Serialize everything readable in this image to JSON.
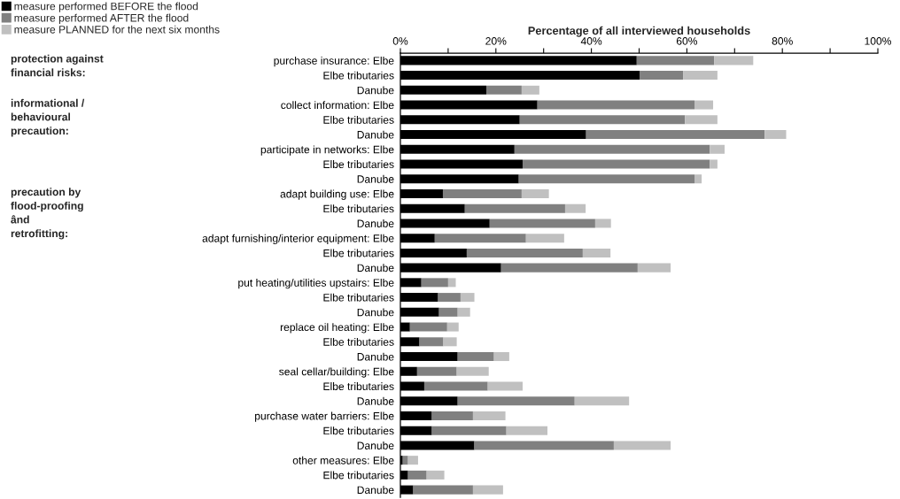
{
  "chart_data": {
    "type": "bar",
    "orientation": "horizontal",
    "stacked": true,
    "xlabel": "Percentage of all interviewed households",
    "categories": [
      "purchase insurance: Elbe",
      "Elbe tributaries",
      "Danube",
      "collect information: Elbe",
      "Elbe tributaries",
      "Danube",
      "participate in networks: Elbe",
      "Elbe tributaries",
      "Danube",
      "adapt building use: Elbe",
      "Elbe tributaries",
      "Danube",
      "adapt furnishing/interior equipment: Elbe",
      "Elbe tributaries",
      "Danube",
      "put heating/utilities upstairs: Elbe",
      "Elbe tributaries",
      "Danube",
      "replace oil heating: Elbe",
      "Elbe tributaries",
      "Danube",
      "seal cellar/building: Elbe",
      "Elbe tributaries",
      "Danube",
      "purchase water barriers: Elbe",
      "Elbe tributaries",
      "Danube",
      "other measures: Elbe",
      "Elbe tributaries",
      "Danube"
    ],
    "series": [
      {
        "name": "measure performed BEFORE the flood",
        "color": "#000000",
        "values": [
          49.5,
          50.1,
          18.0,
          28.7,
          25.0,
          38.9,
          23.9,
          25.6,
          24.8,
          8.9,
          13.5,
          18.7,
          7.2,
          13.9,
          21.1,
          4.4,
          7.9,
          8.1,
          2.0,
          4.0,
          12.0,
          3.5,
          5.0,
          12.0,
          6.6,
          6.6,
          15.5,
          0.5,
          1.6,
          2.7
        ]
      },
      {
        "name": "measure performed AFTER the flood",
        "color": "#808080",
        "values": [
          16.2,
          9.1,
          7.4,
          32.9,
          34.6,
          37.4,
          40.9,
          39.2,
          36.8,
          16.5,
          21.0,
          22.1,
          19.1,
          24.3,
          28.6,
          5.6,
          4.7,
          3.9,
          7.8,
          5.0,
          7.6,
          8.3,
          13.3,
          24.5,
          8.6,
          15.6,
          29.2,
          1.1,
          3.9,
          12.5
        ]
      },
      {
        "name": "measure PLANNED for the next six months",
        "color": "#c0c0c0",
        "values": [
          8.2,
          7.2,
          3.7,
          3.9,
          6.8,
          4.5,
          3.1,
          1.6,
          1.5,
          5.7,
          4.3,
          3.3,
          8.0,
          5.8,
          6.9,
          1.6,
          2.9,
          2.6,
          2.4,
          2.8,
          3.2,
          6.7,
          7.3,
          11.4,
          6.8,
          8.6,
          11.9,
          2.1,
          3.7,
          6.3
        ]
      }
    ],
    "xlim": [
      0,
      100
    ],
    "xticks": [
      {
        "value": 0,
        "label": "0%"
      },
      {
        "value": 10,
        "label": null
      },
      {
        "value": 20,
        "label": "20%"
      },
      {
        "value": 30,
        "label": null
      },
      {
        "value": 40,
        "label": "40%"
      },
      {
        "value": 50,
        "label": null
      },
      {
        "value": 60,
        "label": "60%"
      },
      {
        "value": 70,
        "label": null
      },
      {
        "value": 80,
        "label": "80%"
      },
      {
        "value": 90,
        "label": null
      },
      {
        "value": 100,
        "label": "100%"
      }
    ],
    "annotations": [
      "protection against\nfinancial risks:",
      "informational /\nbehavioural\nprecaution:",
      "precaution by\nflood-proofing\nând\nretrofitting:"
    ],
    "legend": "top left",
    "grid": false
  }
}
